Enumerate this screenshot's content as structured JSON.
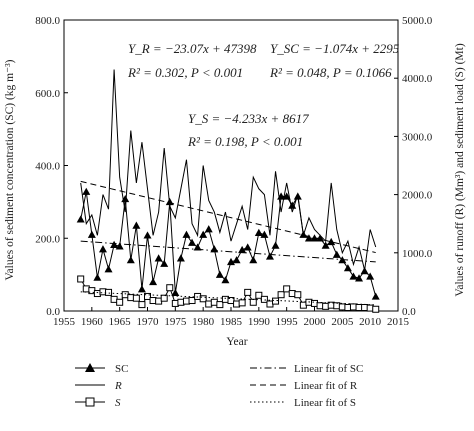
{
  "chart_data": {
    "type": "line",
    "xlabel": "Year",
    "ylabel_left": "Values of sediment concentration (SC) (kg m⁻³)",
    "ylabel_right": "Values of runoff (R) (Mm³) and sediment load (S) (Mt)",
    "xlim": [
      1955,
      2015
    ],
    "ylim_left": [
      0,
      800
    ],
    "ylim_right": [
      0,
      5000
    ],
    "x_ticks": [
      "1955",
      "1960",
      "1965",
      "1970",
      "1975",
      "1980",
      "1985",
      "1990",
      "1995",
      "2000",
      "2005",
      "2010",
      "2015"
    ],
    "y_left_ticks": [
      "0.0",
      "200.0",
      "400.0",
      "600.0",
      "800.0"
    ],
    "y_right_ticks": [
      "0.0",
      "1000.0",
      "2000.0",
      "3000.0",
      "4000.0",
      "5000.0"
    ],
    "annotations": [
      {
        "line1": "Y_R = −23.07x + 47398",
        "line2": "R² = 0.302, P < 0.001"
      },
      {
        "line1": "Y_SC = −1.074x + 2295",
        "line2": "R² = 0.048, P = 0.1066"
      },
      {
        "line1": "Y_S = −4.233x + 8617",
        "line2": "R² = 0.198, P < 0.001"
      }
    ],
    "years": [
      1958,
      1959,
      1960,
      1961,
      1962,
      1963,
      1964,
      1965,
      1966,
      1967,
      1968,
      1969,
      1970,
      1971,
      1972,
      1973,
      1974,
      1975,
      1976,
      1977,
      1978,
      1979,
      1980,
      1981,
      1982,
      1983,
      1984,
      1985,
      1986,
      1987,
      1988,
      1989,
      1990,
      1991,
      1992,
      1993,
      1994,
      1995,
      1996,
      1997,
      1998,
      1999,
      2000,
      2001,
      2002,
      2003,
      2004,
      2005,
      2006,
      2007,
      2008,
      2009,
      2010,
      2011
    ],
    "series": [
      {
        "name": "SC",
        "axis": "left",
        "marker": "triangle",
        "color": "#000000",
        "values": [
          252,
          328,
          210,
          92,
          170,
          115,
          182,
          178,
          308,
          140,
          235,
          60,
          208,
          80,
          145,
          130,
          300,
          50,
          145,
          210,
          188,
          175,
          210,
          225,
          170,
          100,
          85,
          135,
          140,
          168,
          175,
          140,
          215,
          210,
          150,
          180,
          315,
          315,
          290,
          315,
          210,
          200,
          200,
          200,
          180,
          190,
          155,
          140,
          118,
          95,
          90,
          110,
          95,
          40
        ]
      },
      {
        "name": "R",
        "axis": "right",
        "color": "#000000",
        "values": [
          2200,
          1500,
          1650,
          1300,
          2000,
          1750,
          4150,
          2300,
          1700,
          3100,
          2200,
          2900,
          2100,
          1300,
          1700,
          2800,
          1800,
          1600,
          2100,
          2600,
          1500,
          1300,
          2500,
          1900,
          1700,
          1350,
          1700,
          1200,
          1500,
          1800,
          1400,
          2300,
          2100,
          2000,
          1300,
          2400,
          1700,
          2200,
          1700,
          2000,
          1300,
          1600,
          1400,
          1300,
          1200,
          2200,
          1400,
          1000,
          1200,
          800,
          1100,
          700,
          1400,
          1100
        ]
      },
      {
        "name": "S",
        "axis": "right",
        "marker": "square",
        "color": "#000000",
        "values": [
          550,
          380,
          350,
          300,
          330,
          320,
          200,
          150,
          280,
          230,
          220,
          110,
          250,
          180,
          170,
          220,
          400,
          130,
          150,
          170,
          180,
          250,
          210,
          120,
          150,
          110,
          200,
          180,
          120,
          140,
          320,
          150,
          270,
          200,
          120,
          170,
          280,
          380,
          300,
          280,
          100,
          150,
          130,
          90,
          80,
          100,
          90,
          70,
          60,
          70,
          60,
          60,
          50,
          30
        ]
      },
      {
        "name": "Linear fit of SC",
        "axis": "left",
        "dash": "dashdot",
        "x": [
          1958,
          2011
        ],
        "values": [
          192,
          135
        ]
      },
      {
        "name": "Linear fit of R",
        "axis": "right",
        "dash": "dashed",
        "x": [
          1958,
          2011
        ],
        "values": [
          2227,
          1004
        ]
      },
      {
        "name": "Linear fit of S",
        "axis": "right",
        "dash": "dotted",
        "x": [
          1958,
          2011
        ],
        "values": [
          329,
          105
        ]
      }
    ],
    "legend": [
      {
        "label": "SC",
        "style": "triangle"
      },
      {
        "label": "R",
        "style": "line"
      },
      {
        "label": "S",
        "style": "square"
      },
      {
        "label": "Linear fit of SC",
        "style": "dashdot"
      },
      {
        "label": "Linear fit of R",
        "style": "dashed"
      },
      {
        "label": "Linear fit of S",
        "style": "dotted"
      }
    ]
  }
}
